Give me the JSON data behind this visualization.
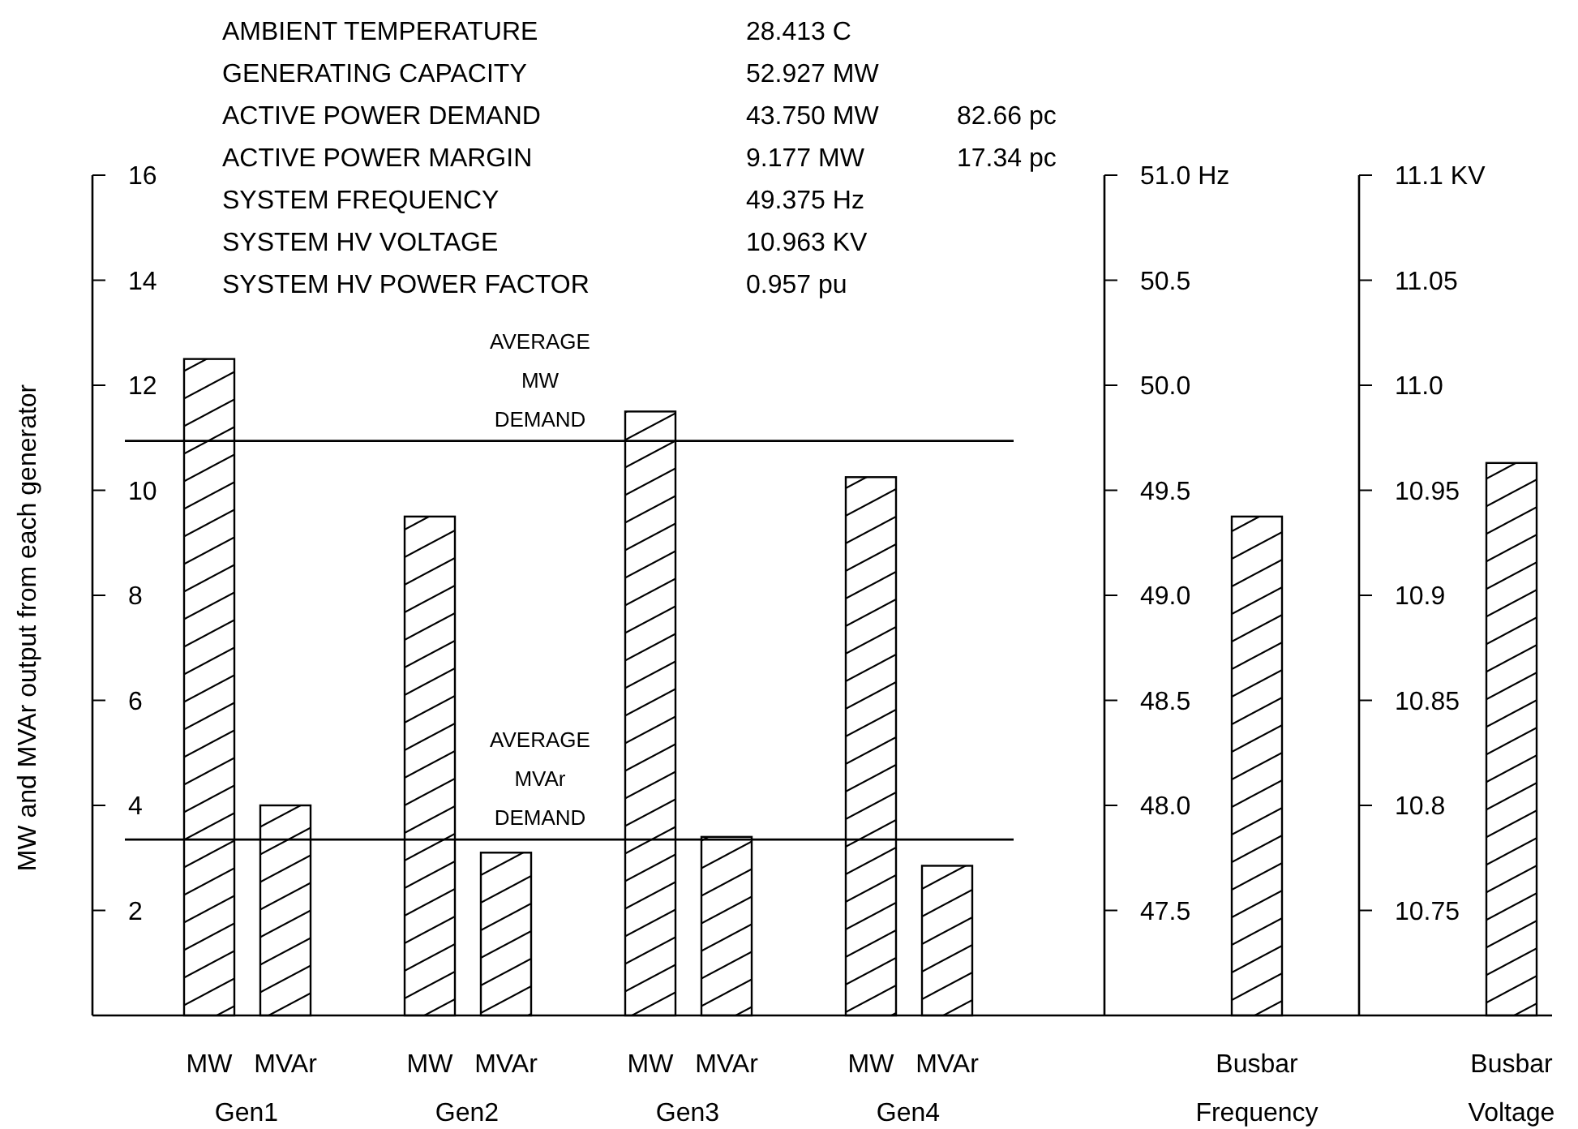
{
  "chart_data": [
    {
      "type": "bar",
      "ylabel": "MW and MVAr output from each generator",
      "categories": [
        "MW",
        "MVAr",
        "MW",
        "MVAr",
        "MW",
        "MVAr",
        "MW",
        "MVAr"
      ],
      "values": [
        12.5,
        4.0,
        9.5,
        3.1,
        11.5,
        3.4,
        10.25,
        2.85
      ],
      "color": "#000000",
      "ylim": [
        0,
        16
      ],
      "yticks": [
        2,
        4,
        6,
        8,
        10,
        12,
        14,
        16
      ],
      "ref_lines": [
        {
          "axis": "y",
          "value": 10.94,
          "label": "AVERAGE MW DEMAND"
        },
        {
          "axis": "y",
          "value": 3.35,
          "label": "AVERAGE MVAr DEMAND"
        }
      ],
      "annotations": [
        "Gen1",
        "Gen2",
        "Gen3",
        "Gen4",
        "AMBIENT TEMPERATURE\t28.413 C",
        "GENERATING CAPACITY\t52.927 MW",
        "ACTIVE POWER DEMAND\t43.750 MW\t82.66 pc",
        "ACTIVE POWER MARGIN\t9.177 MW\t17.34 pc",
        "SYSTEM FREQUENCY\t49.375 Hz",
        "SYSTEM HV VOLTAGE\t10.963 KV",
        "SYSTEM HV POWER FACTOR\t0.957 pu"
      ]
    },
    {
      "type": "bar",
      "categories": [
        "Busbar Frequency"
      ],
      "values": [
        49.375
      ],
      "color": "#000000",
      "ylim": [
        47,
        51
      ],
      "yticks": [
        47.5,
        {
          "value": 48,
          "label": "48.0"
        },
        48.5,
        {
          "value": 49,
          "label": "49.0"
        },
        49.5,
        {
          "value": 50,
          "label": "50.0"
        },
        50.5,
        {
          "value": 51,
          "label": "51.0 Hz"
        }
      ]
    },
    {
      "type": "bar",
      "categories": [
        "Busbar Voltage"
      ],
      "values": [
        10.963
      ],
      "color": "#000000",
      "ylim": [
        10.7,
        11.1
      ],
      "yticks": [
        10.75,
        10.8,
        10.85,
        10.9,
        10.95,
        {
          "value": 11,
          "label": "11.0"
        },
        11.05,
        {
          "value": 11.1,
          "label": "11.1 KV"
        }
      ]
    }
  ]
}
